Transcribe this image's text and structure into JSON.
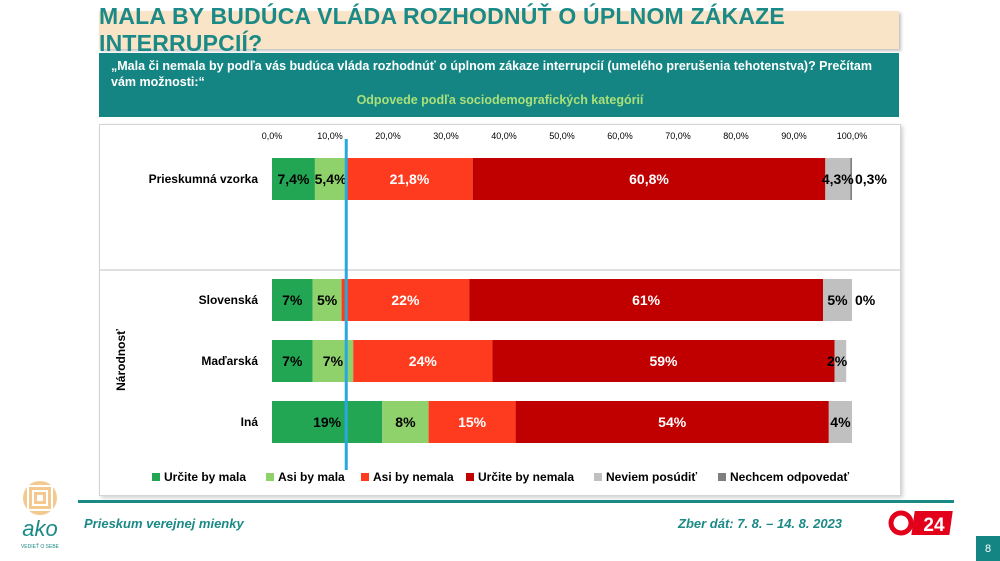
{
  "title": "MALA BY BUDÚCA VLÁDA ROZHODNÚŤ O ÚPLNOM ZÁKAZE INTERRUPCIÍ?",
  "question": "„Mala či nemala by podľa vás budúca vláda rozhodnúť o úplnom zákaze interrupcií (umelého prerušenia tehotenstva)? Prečítam vám možnosti:“",
  "subtitle": "Odpovede podľa sociodemografických kategórií",
  "footer": {
    "left": "Prieskum verejnej mienky",
    "right": "Zber dát: 7. 8. – 14. 8. 2023",
    "page": "8",
    "logo_text": "ako",
    "logo_tagline": "VEDIEŤ O SEBE",
    "tv_logo": "24"
  },
  "colors": {
    "accent": "#1b8a86",
    "series": [
      "#22a653",
      "#8fd16a",
      "#ff3b1f",
      "#c00000",
      "#c0c0c0",
      "#7f7f7f"
    ],
    "reference_line": "#29a8e0"
  },
  "chart_data": {
    "type": "bar",
    "orientation": "horizontal",
    "stacked": true,
    "xlim": [
      0,
      100
    ],
    "xticks": [
      "0,0%",
      "10,0%",
      "20,0%",
      "30,0%",
      "40,0%",
      "50,0%",
      "60,0%",
      "70,0%",
      "80,0%",
      "90,0%",
      "100,0%"
    ],
    "group_label": "Národnosť",
    "categories": [
      "Prieskumná vzorka",
      "Slovenská",
      "Maďarská",
      "Iná"
    ],
    "reference_line_x": 12.8,
    "series": [
      {
        "name": "Určite by mala",
        "values": [
          7.4,
          7,
          7,
          19
        ],
        "labels": [
          "7,4%",
          "7%",
          "7%",
          "19%"
        ]
      },
      {
        "name": "Asi by mala",
        "values": [
          5.4,
          5,
          7,
          8
        ],
        "labels": [
          "5,4%",
          "5%",
          "7%",
          "8%"
        ]
      },
      {
        "name": "Asi by nemala",
        "values": [
          21.8,
          22,
          24,
          15
        ],
        "labels": [
          "21,8%",
          "22%",
          "24%",
          "15%"
        ]
      },
      {
        "name": "Určite by nemala",
        "values": [
          60.8,
          61,
          59,
          54
        ],
        "labels": [
          "60,8%",
          "61%",
          "59%",
          "54%"
        ]
      },
      {
        "name": "Neviem posúdiť",
        "values": [
          4.3,
          5,
          2,
          4
        ],
        "labels": [
          "4,3%",
          "5%",
          "2%",
          "4%"
        ]
      },
      {
        "name": "Nechcem odpovedať",
        "values": [
          0.3,
          0,
          0,
          0
        ],
        "labels": [
          "0,3%",
          "0%",
          "",
          ""
        ]
      }
    ]
  }
}
